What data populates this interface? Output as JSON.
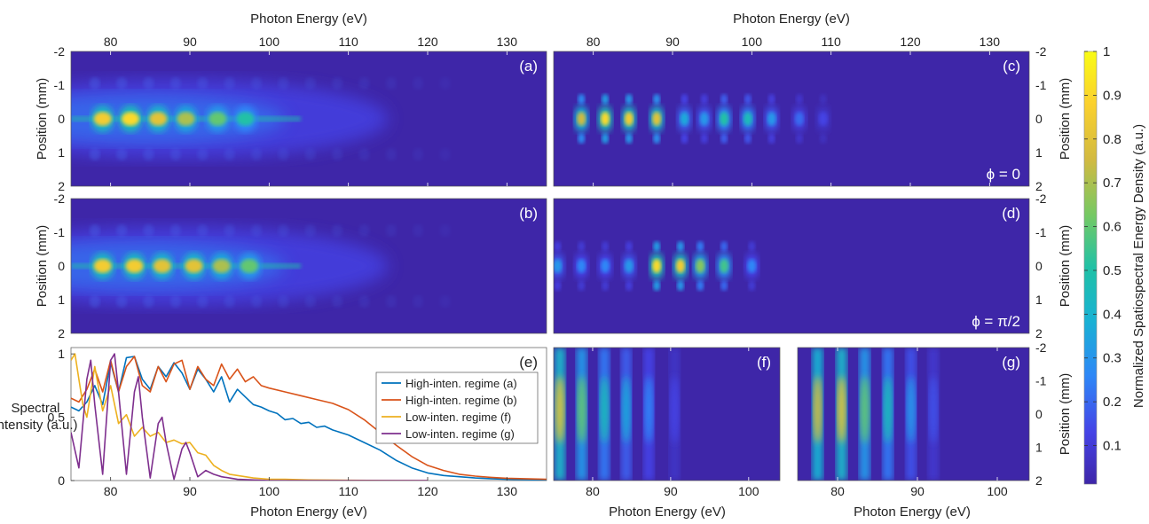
{
  "top_xlabel_left": "Photon Energy (eV)",
  "top_xlabel_right": "Photon Energy (eV)",
  "ylabel_position": "Position (mm)",
  "ylabel_spectral": "Spectral Intensity (a.u.)",
  "ylabel_spectral_line1": "Spectral",
  "ylabel_spectral_line2": "Intensity (a.u.)",
  "xlabel_bottom": "Photon Energy (eV)",
  "colorbar_label": "Normalized Spatiospectral Energy Density (a.u.)",
  "panels": {
    "a": {
      "label": "(a)"
    },
    "b": {
      "label": "(b)"
    },
    "c": {
      "label": "(c)",
      "phase": "ϕ = 0"
    },
    "d": {
      "label": "(d)",
      "phase": "ϕ = π/2"
    },
    "e": {
      "label": "(e)"
    },
    "f": {
      "label": "(f)"
    },
    "g": {
      "label": "(g)"
    }
  },
  "colorbar": {
    "ticks": [
      "1",
      "0.9",
      "0.8",
      "0.7",
      "0.6",
      "0.5",
      "0.4",
      "0.3",
      "0.2",
      "0.1"
    ],
    "colors": [
      "#3e26a8",
      "#4543e6",
      "#2e87f7",
      "#19b2d3",
      "#20c1a6",
      "#74c964",
      "#d2ba41",
      "#fbd12e",
      "#f9fb15"
    ]
  },
  "chart_data": [
    {
      "type": "heatmap",
      "panel": "a",
      "title": "",
      "xlabel": "Photon Energy (eV)",
      "ylabel": "Position (mm)",
      "xlim": [
        75,
        135
      ],
      "ylim": [
        -2,
        2
      ],
      "xticks": [
        "80",
        "90",
        "100",
        "110",
        "120",
        "130"
      ],
      "yticks": [
        "-2",
        "-1",
        "0",
        "1",
        "2"
      ],
      "peaks_eV": [
        79,
        82.5,
        86,
        89.5,
        93.5,
        97
      ],
      "peak_amplitudes": [
        0.85,
        0.9,
        0.8,
        0.7,
        0.6,
        0.5
      ]
    },
    {
      "type": "heatmap",
      "panel": "b",
      "xlabel": "Photon Energy (eV)",
      "ylabel": "Position (mm)",
      "xlim": [
        75,
        135
      ],
      "ylim": [
        -2,
        2
      ],
      "xticks": [
        "80",
        "90",
        "100",
        "110",
        "120",
        "130"
      ],
      "yticks": [
        "-2",
        "-1",
        "0",
        "1",
        "2"
      ],
      "peaks_eV": [
        79,
        83,
        86.5,
        90.5,
        94,
        97.5
      ],
      "peak_amplitudes": [
        0.85,
        0.85,
        0.8,
        0.8,
        0.7,
        0.6
      ]
    },
    {
      "type": "heatmap",
      "panel": "c",
      "annotation": "ϕ = 0",
      "xlabel": "Photon Energy (eV)",
      "ylabel": "Position (mm)",
      "xlim": [
        75,
        135
      ],
      "ylim": [
        -2,
        2
      ],
      "xticks": [
        "80",
        "90",
        "100",
        "110",
        "120",
        "130"
      ],
      "yticks": [
        "-2",
        "-1",
        "0",
        "1",
        "2"
      ],
      "peaks_eV": [
        78.5,
        81.5,
        84.5,
        88,
        91.5,
        94,
        96.5,
        99.5,
        102.5,
        106,
        109
      ],
      "peak_amplitudes": [
        0.75,
        0.9,
        0.85,
        0.8,
        0.35,
        0.3,
        0.5,
        0.45,
        0.3,
        0.2,
        0.12
      ]
    },
    {
      "type": "heatmap",
      "panel": "d",
      "annotation": "ϕ = π/2",
      "xlabel": "Photon Energy (eV)",
      "ylabel": "Position (mm)",
      "xlim": [
        75,
        135
      ],
      "ylim": [
        -2,
        2
      ],
      "xticks": [
        "80",
        "90",
        "100",
        "110",
        "120",
        "130"
      ],
      "yticks": [
        "-2",
        "-1",
        "0",
        "1",
        "2"
      ],
      "peaks_eV": [
        75.5,
        78.5,
        81.5,
        84.5,
        88,
        91,
        93.5,
        96.5,
        100
      ],
      "peak_amplitudes": [
        0.3,
        0.25,
        0.25,
        0.3,
        0.9,
        0.85,
        0.65,
        0.55,
        0.25
      ]
    },
    {
      "type": "line",
      "panel": "e",
      "xlabel": "Photon Energy (eV)",
      "ylabel": "Spectral Intensity (a.u.)",
      "xlim": [
        75,
        135
      ],
      "ylim": [
        0,
        1.05
      ],
      "xticks": [
        "80",
        "90",
        "100",
        "110",
        "120",
        "130"
      ],
      "yticks": [
        "0",
        "0.5",
        "1"
      ],
      "legend": "top-right",
      "series": [
        {
          "name": "High-inten. regime (a)",
          "color": "#0072bd",
          "x": [
            75,
            76,
            77,
            78,
            79,
            80,
            81,
            82,
            83,
            84,
            85,
            86,
            87,
            88,
            89,
            90,
            91,
            92,
            93,
            94,
            95,
            96,
            97,
            98,
            99,
            100,
            101,
            102,
            103,
            104,
            105,
            106,
            107,
            108,
            110,
            112,
            114,
            116,
            118,
            120,
            122,
            124,
            126,
            128,
            130,
            135
          ],
          "y": [
            0.58,
            0.55,
            0.62,
            0.75,
            0.6,
            0.93,
            0.7,
            0.97,
            0.98,
            0.8,
            0.72,
            0.9,
            0.82,
            0.93,
            0.85,
            0.72,
            0.88,
            0.8,
            0.7,
            0.82,
            0.62,
            0.72,
            0.66,
            0.6,
            0.58,
            0.55,
            0.53,
            0.48,
            0.49,
            0.45,
            0.46,
            0.42,
            0.43,
            0.4,
            0.36,
            0.3,
            0.24,
            0.16,
            0.1,
            0.06,
            0.04,
            0.03,
            0.02,
            0.015,
            0.01,
            0.005
          ]
        },
        {
          "name": "High-inten. regime (b)",
          "color": "#d95319",
          "x": [
            75,
            76,
            77,
            78,
            79,
            80,
            81,
            82,
            83,
            84,
            85,
            86,
            87,
            88,
            89,
            90,
            91,
            92,
            93,
            94,
            95,
            96,
            97,
            98,
            99,
            100,
            102,
            104,
            106,
            108,
            110,
            112,
            114,
            116,
            118,
            120,
            122,
            124,
            126,
            128,
            130,
            135
          ],
          "y": [
            0.65,
            0.62,
            0.72,
            0.88,
            0.7,
            0.95,
            0.7,
            0.9,
            0.98,
            0.75,
            0.7,
            0.9,
            0.78,
            0.92,
            0.95,
            0.72,
            0.9,
            0.8,
            0.75,
            0.92,
            0.8,
            0.88,
            0.78,
            0.82,
            0.75,
            0.73,
            0.7,
            0.67,
            0.64,
            0.61,
            0.56,
            0.48,
            0.38,
            0.28,
            0.19,
            0.12,
            0.08,
            0.05,
            0.035,
            0.025,
            0.018,
            0.01
          ]
        },
        {
          "name": "Low-inten. regime (f)",
          "color": "#edb120",
          "x": [
            75,
            75.5,
            76,
            76.5,
            77,
            78,
            79,
            80,
            81,
            82,
            83,
            84,
            85,
            86,
            87,
            88,
            89,
            90,
            91,
            92,
            93,
            94,
            95,
            96,
            97,
            98,
            100,
            102,
            105,
            110,
            115,
            120
          ],
          "y": [
            0.95,
            1.0,
            0.8,
            0.6,
            0.5,
            0.9,
            0.55,
            0.75,
            0.45,
            0.52,
            0.35,
            0.42,
            0.35,
            0.38,
            0.3,
            0.32,
            0.29,
            0.3,
            0.22,
            0.2,
            0.12,
            0.08,
            0.05,
            0.04,
            0.03,
            0.02,
            0.01,
            0.01,
            0.005,
            0.002,
            0.001,
            0
          ]
        },
        {
          "name": "Low-inten. regime (g)",
          "color": "#7e2f8e",
          "x": [
            75,
            76,
            77,
            77.5,
            78,
            79,
            80,
            80.5,
            81,
            82,
            83,
            83.5,
            84,
            85,
            86,
            86.5,
            87,
            88,
            89,
            89.5,
            90,
            91,
            92,
            93,
            94,
            95,
            96,
            98,
            100,
            105,
            110,
            120
          ],
          "y": [
            0.38,
            0.1,
            0.8,
            0.95,
            0.6,
            0.05,
            0.95,
            1.0,
            0.7,
            0.05,
            0.7,
            0.82,
            0.5,
            0.02,
            0.45,
            0.5,
            0.3,
            0.01,
            0.25,
            0.3,
            0.22,
            0.03,
            0.08,
            0.05,
            0.03,
            0.02,
            0.01,
            0.005,
            0,
            0,
            0,
            0
          ]
        }
      ]
    },
    {
      "type": "heatmap",
      "panel": "f",
      "xlabel": "Photon Energy (eV)",
      "xlim": [
        75,
        104
      ],
      "ylim": [
        -2,
        2
      ],
      "xticks": [
        "80",
        "90",
        "100"
      ],
      "bands_eV": [
        75.8,
        78.6,
        81.5,
        84.3,
        87.2,
        90.5
      ],
      "band_amplitudes": [
        0.8,
        0.6,
        0.45,
        0.35,
        0.25,
        0.12
      ]
    },
    {
      "type": "heatmap",
      "panel": "g",
      "xlabel": "Photon Energy (eV)",
      "ylabel": "Position (mm)",
      "xlim": [
        75,
        104
      ],
      "ylim": [
        -2,
        2
      ],
      "xticks": [
        "80",
        "90",
        "100"
      ],
      "yticks": [
        "-2",
        "-1",
        "0",
        "1",
        "2"
      ],
      "bands_eV": [
        77.5,
        80.5,
        83.4,
        86.3,
        89.2,
        92
      ],
      "band_amplitudes": [
        0.75,
        0.8,
        0.6,
        0.45,
        0.3,
        0.15
      ]
    }
  ]
}
